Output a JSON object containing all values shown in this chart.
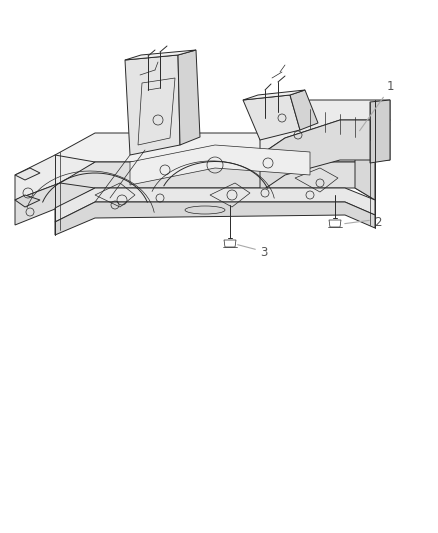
{
  "background_color": "#ffffff",
  "figure_width": 4.38,
  "figure_height": 5.33,
  "dpi": 100,
  "line_color": "#aaaaaa",
  "text_color": "#555555",
  "part_line_color": "#2a2a2a",
  "label_fontsize": 8.5,
  "label_1": "1",
  "label_2": "2",
  "label_3": "3"
}
